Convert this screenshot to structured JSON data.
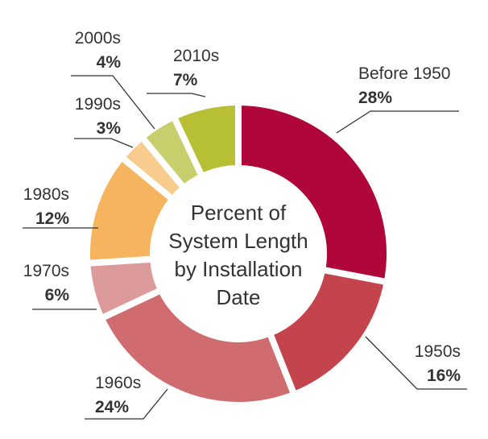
{
  "chart_data": {
    "type": "pie",
    "donut": true,
    "center_title_lines": [
      "Percent of",
      "System Length",
      "by Installation",
      "Date"
    ],
    "categories": [
      "Before 1950",
      "1950s",
      "1960s",
      "1970s",
      "1980s",
      "1990s",
      "2000s",
      "2010s"
    ],
    "values": [
      28,
      16,
      24,
      6,
      12,
      3,
      4,
      7
    ],
    "value_labels": [
      "28%",
      "16%",
      "24%",
      "6%",
      "12%",
      "3%",
      "4%",
      "7%"
    ],
    "colors": [
      "#b0073a",
      "#c4444d",
      "#d06c70",
      "#dd9a9a",
      "#f6b45e",
      "#f8cc8d",
      "#c7cf6c",
      "#b7c035"
    ],
    "unit": "%",
    "legend": "none"
  }
}
